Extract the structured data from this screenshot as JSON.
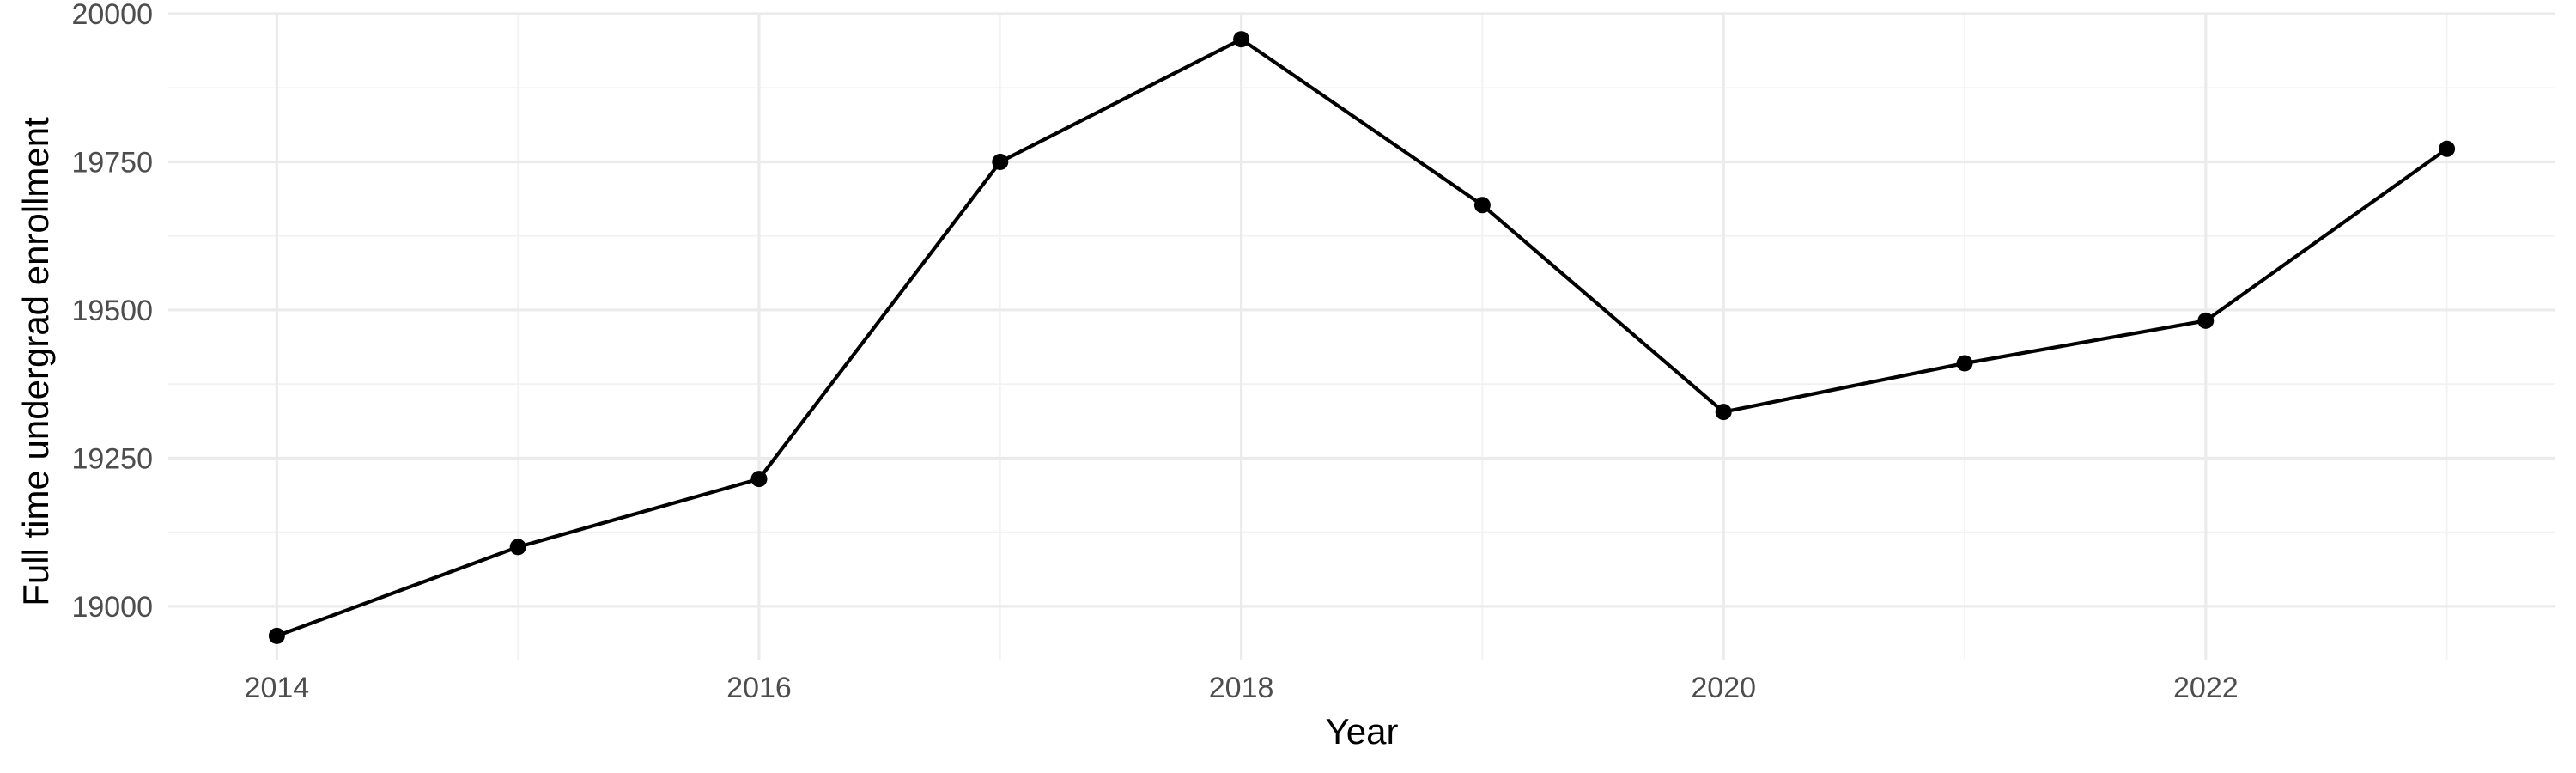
{
  "chart_data": {
    "type": "line",
    "title": "",
    "xlabel": "Year",
    "ylabel": "Full time undergrad enrollment",
    "x": [
      2014,
      2015,
      2016,
      2017,
      2018,
      2019,
      2020,
      2021,
      2022,
      2023
    ],
    "series": [
      {
        "values": [
          18950,
          19100,
          19215,
          19750,
          19957,
          19677,
          19328,
          19410,
          19482,
          19772
        ]
      }
    ],
    "xlim": [
      2013.55,
      2023.45
    ],
    "ylim": [
      18910,
      20000
    ],
    "x_ticks": [
      "2014",
      "2016",
      "2018",
      "2020",
      "2022"
    ],
    "y_ticks": [
      "19000",
      "19250",
      "19500",
      "19750",
      "20000"
    ],
    "grid": true,
    "legend": "none",
    "colors": {
      "line": "#000000",
      "point": "#000000",
      "grid_major": "#ebebeb",
      "grid_minor": "#f2f2f2",
      "tick_text": "#4d4d4d"
    }
  }
}
